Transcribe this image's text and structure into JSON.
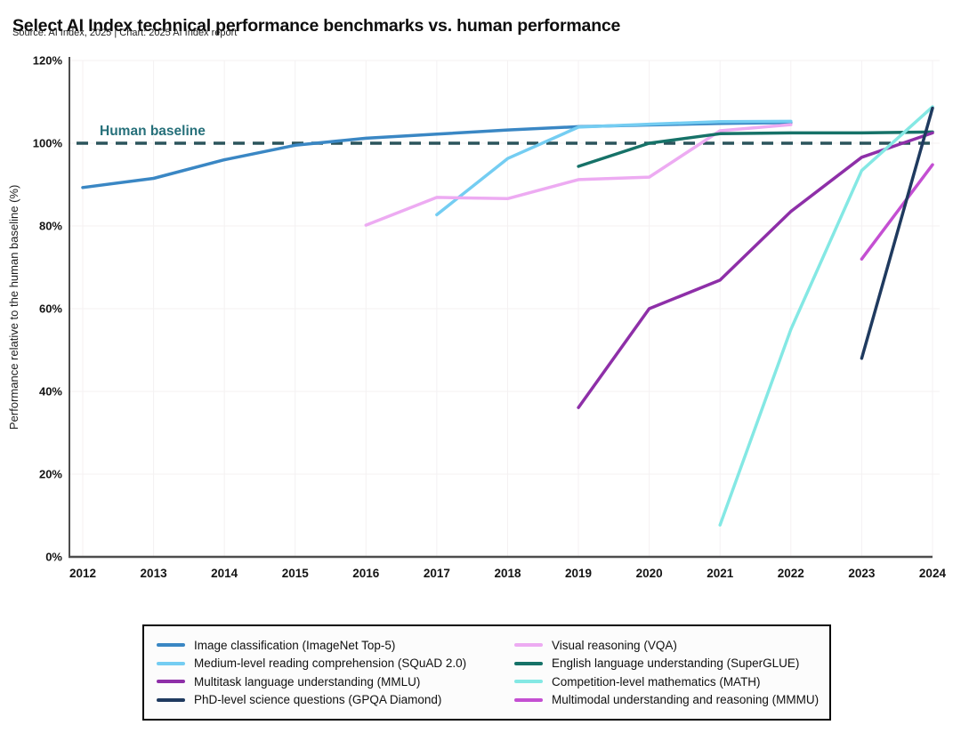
{
  "chart_data": {
    "type": "line",
    "title": "Select AI Index technical performance benchmarks vs. human performance",
    "source": "Source: AI Index, 2025 | Chart: 2025 AI Index report",
    "xlabel": "",
    "ylabel": "Performance relative to the human baseline (%)",
    "xlim": [
      2011.8,
      2024.3
    ],
    "ylim": [
      0,
      120
    ],
    "x_ticks": [
      2012,
      2013,
      2014,
      2015,
      2016,
      2017,
      2018,
      2019,
      2020,
      2021,
      2022,
      2023,
      2024
    ],
    "y_ticks_percent": [
      0,
      20,
      40,
      60,
      80,
      100,
      120
    ],
    "grid": true,
    "legend_position": "bottom",
    "human_baseline": {
      "label": "Human baseline",
      "value": 100,
      "line_color": "#2b545c",
      "label_color": "#26707a"
    },
    "axis_color": "#4d4d4d",
    "grid_color": "#f4f1f2",
    "series": [
      {
        "name": "Image classification (ImageNet Top-5)",
        "color": "#3a87c4",
        "points": [
          [
            2012,
            89.3
          ],
          [
            2013,
            91.5
          ],
          [
            2014,
            96.0
          ],
          [
            2015,
            99.5
          ],
          [
            2016,
            101.2
          ],
          [
            2017,
            102.2
          ],
          [
            2018,
            103.2
          ],
          [
            2019,
            104.0
          ],
          [
            2020,
            104.4
          ],
          [
            2021,
            104.8
          ],
          [
            2022,
            105.0
          ]
        ]
      },
      {
        "name": "Medium-level reading comprehension (SQuAD 2.0)",
        "color": "#74cdf2",
        "points": [
          [
            2017,
            82.7
          ],
          [
            2018,
            96.3
          ],
          [
            2019,
            103.9
          ],
          [
            2020,
            104.6
          ],
          [
            2021,
            105.2
          ],
          [
            2022,
            105.3
          ]
        ]
      },
      {
        "name": "Multitask language understanding (MMLU)",
        "color": "#8e2fa8",
        "points": [
          [
            2019,
            36.1
          ],
          [
            2020,
            60.0
          ],
          [
            2021,
            66.9
          ],
          [
            2022,
            83.5
          ],
          [
            2023,
            96.6
          ],
          [
            2024,
            102.5
          ]
        ]
      },
      {
        "name": "PhD-level science questions (GPQA Diamond)",
        "color": "#1f3a5f",
        "points": [
          [
            2023,
            48.0
          ],
          [
            2024,
            108.5
          ]
        ]
      },
      {
        "name": "Visual reasoning (VQA)",
        "color": "#edabf2",
        "points": [
          [
            2016,
            80.2
          ],
          [
            2017,
            86.9
          ],
          [
            2018,
            86.6
          ],
          [
            2019,
            91.2
          ],
          [
            2020,
            91.8
          ],
          [
            2021,
            103.0
          ],
          [
            2022,
            104.5
          ]
        ]
      },
      {
        "name": "English language understanding (SuperGLUE)",
        "color": "#167268",
        "points": [
          [
            2019,
            94.4
          ],
          [
            2020,
            100.0
          ],
          [
            2021,
            102.3
          ],
          [
            2022,
            102.5
          ],
          [
            2023,
            102.5
          ],
          [
            2024,
            102.7
          ]
        ]
      },
      {
        "name": "Competition-level mathematics (MATH)",
        "color": "#84e8e4",
        "points": [
          [
            2021,
            7.7
          ],
          [
            2022,
            55.0
          ],
          [
            2023,
            93.4
          ],
          [
            2024,
            108.8
          ]
        ]
      },
      {
        "name": "Multimodal understanding and reasoning (MMMU)",
        "color": "#c44fd2",
        "points": [
          [
            2023,
            72.0
          ],
          [
            2024,
            94.8
          ]
        ]
      }
    ]
  }
}
